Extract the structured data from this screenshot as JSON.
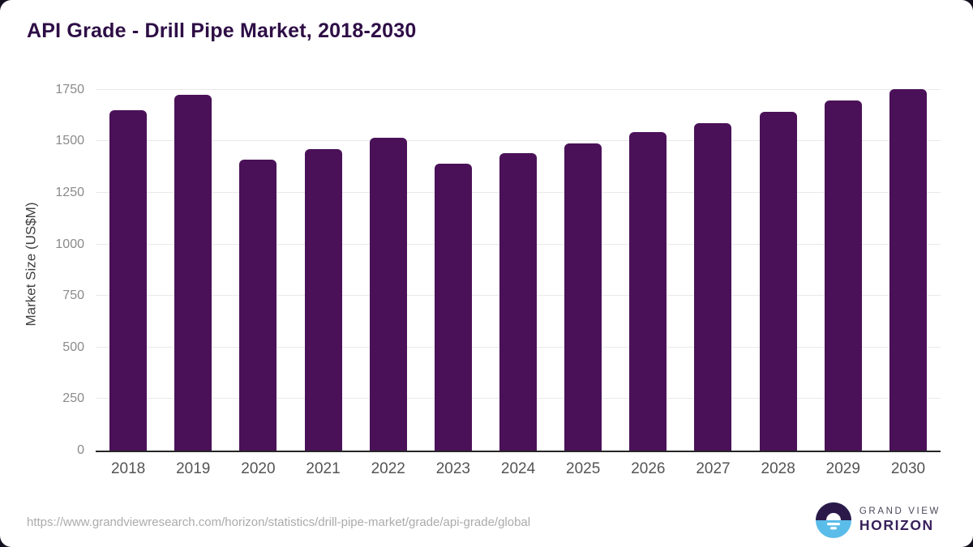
{
  "title": "API Grade - Drill Pipe Market, 2018-2030",
  "chart_data": {
    "type": "bar",
    "title": "API Grade - Drill Pipe Market, 2018-2030",
    "categories": [
      "2018",
      "2019",
      "2020",
      "2021",
      "2022",
      "2023",
      "2024",
      "2025",
      "2026",
      "2027",
      "2028",
      "2029",
      "2030"
    ],
    "values": [
      1650,
      1724,
      1411,
      1464,
      1516,
      1391,
      1442,
      1489,
      1543,
      1589,
      1643,
      1698,
      1753
    ],
    "xlabel": "",
    "ylabel": "Market Size (US$M)",
    "yticks": [
      0,
      250,
      500,
      750,
      1000,
      1250,
      1500,
      1750
    ],
    "ylim": [
      0,
      1820
    ],
    "grid": "horizontal",
    "legend": "none",
    "bar_color": "#4A1158",
    "gridline_color": "#E9E9E9",
    "axis_line_color": "#262626",
    "tick_label_color": "#8a8a8a",
    "x_label_color": "#545454"
  },
  "footer": {
    "url": "https://www.grandviewresearch.com/horizon/statistics/drill-pipe-market/grade/api-grade/global",
    "logo": {
      "line1": "GRAND VIEW",
      "line2": "HORIZON",
      "icon": "horizon-sun-logo-icon",
      "colors": {
        "top": "#2B1A49",
        "bottom": "#5ABCE9",
        "text_dark": "#38205C",
        "text_gray": "#4C4659"
      }
    }
  }
}
